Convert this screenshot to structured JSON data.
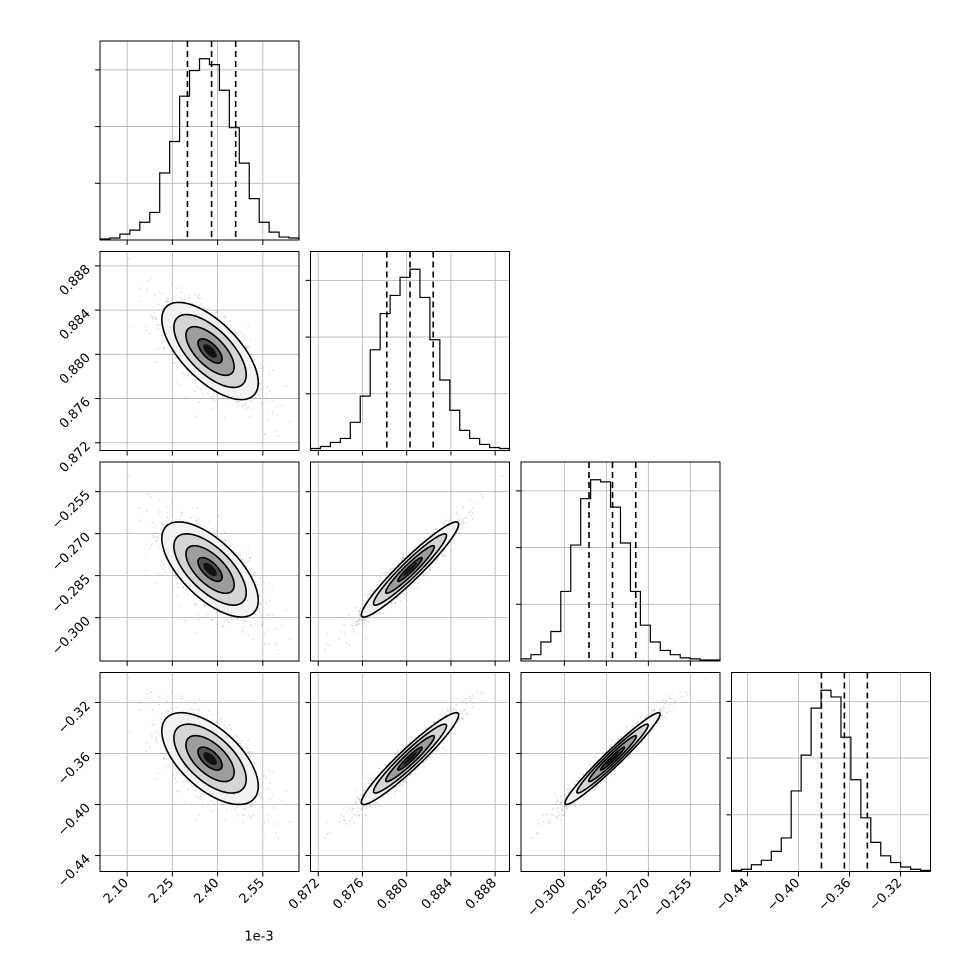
{
  "chart_data": {
    "type": "corner",
    "parameters": [
      {
        "id": "p0",
        "range": [
          2.01,
          2.67
        ],
        "ticks": [
          2.1,
          2.25,
          2.4,
          2.55
        ],
        "tick_labels": [
          "2.10",
          "2.25",
          "2.40",
          "2.55"
        ],
        "axis_offset_label": "1e-3",
        "mean": 2.375,
        "sigma": 0.08,
        "quantiles": [
          2.3,
          2.38,
          2.46
        ],
        "hist": [
          0.5,
          1,
          3,
          5,
          9,
          14,
          34,
          50,
          73,
          86,
          92,
          89,
          76,
          57,
          39,
          21,
          9,
          4,
          1.5,
          1
        ]
      },
      {
        "id": "p1",
        "range": [
          0.8713,
          0.8893
        ],
        "ticks": [
          0.872,
          0.876,
          0.88,
          0.884,
          0.888
        ],
        "tick_labels": [
          "0.872",
          "0.876",
          "0.880",
          "0.884",
          "0.888"
        ],
        "mean": 0.8803,
        "sigma": 0.0022,
        "quantiles": [
          0.8782,
          0.8803,
          0.8824
        ],
        "hist": [
          1,
          2,
          4,
          6,
          14,
          27,
          50,
          68,
          77,
          86,
          90,
          76,
          55,
          35,
          20,
          10,
          6,
          3,
          1.5,
          1
        ]
      },
      {
        "id": "p2",
        "range": [
          -0.3155,
          -0.2444
        ],
        "ticks": [
          -0.3,
          -0.285,
          -0.27,
          -0.255
        ],
        "tick_labels": [
          "−0.300",
          "−0.285",
          "−0.270",
          "−0.255"
        ],
        "mean": -0.2828,
        "sigma": 0.0085,
        "quantiles": [
          -0.2912,
          -0.2828,
          -0.2745
        ],
        "hist": [
          1,
          3,
          9,
          14,
          33,
          55,
          77,
          86,
          85,
          73,
          56,
          33,
          17,
          9,
          5,
          3,
          1.5,
          1,
          0.5,
          0.5
        ]
      },
      {
        "id": "p3",
        "range": [
          -0.4525,
          -0.2965
        ],
        "ticks": [
          -0.44,
          -0.4,
          -0.36,
          -0.32
        ],
        "tick_labels": [
          "−0.44",
          "−0.40",
          "−0.36",
          "−0.32"
        ],
        "mean": -0.364,
        "sigma": 0.018,
        "quantiles": [
          -0.382,
          -0.364,
          -0.346
        ],
        "hist": [
          0.5,
          1,
          3,
          5,
          9,
          15,
          36,
          52,
          73,
          81,
          78,
          60,
          41,
          24,
          13,
          7,
          4,
          2,
          1,
          0.5
        ]
      }
    ],
    "correlations": [
      [
        1,
        -0.65,
        -0.65,
        -0.6
      ],
      [
        -0.65,
        1,
        0.95,
        0.95
      ],
      [
        -0.65,
        0.95,
        1,
        0.97
      ],
      [
        -0.6,
        0.95,
        0.97,
        1
      ]
    ],
    "contour_levels_sigma": [
      0.5,
      1.0,
      1.5,
      2.0
    ],
    "grid": true,
    "colors": {
      "points": "#9a9a9a",
      "lines": "#000000",
      "grid": "#b0b0b0",
      "background": "#ffffff"
    }
  }
}
